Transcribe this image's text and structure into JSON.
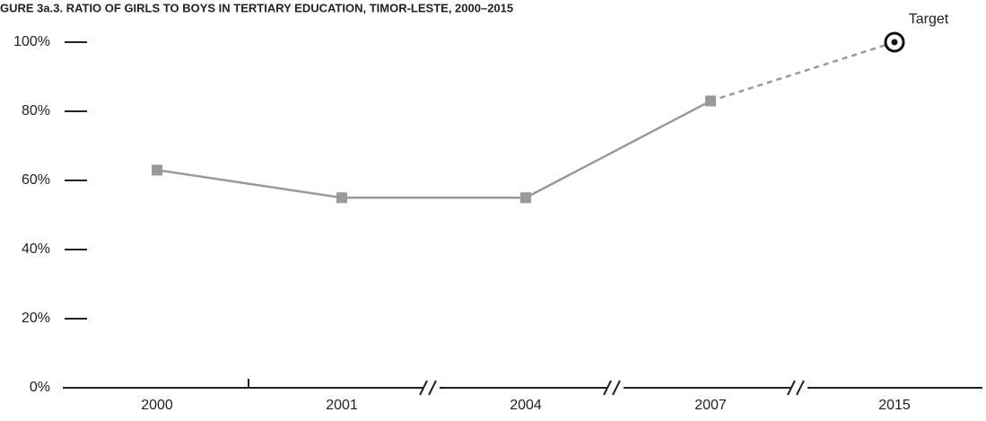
{
  "chart_data": {
    "type": "line",
    "title": "GURE 3a.3. RATIO OF GIRLS TO BOYS IN TERTIARY EDUCATION, TIMOR-LESTE, 2000–2015",
    "categories": [
      "2000",
      "2001",
      "2004",
      "2007",
      "2015"
    ],
    "values": [
      63,
      55,
      55,
      83,
      null
    ],
    "color": "#999999",
    "target": 100,
    "target_label": "Target",
    "target_color": "#111111",
    "ylim": [
      0,
      100
    ],
    "yticks": [
      {
        "value": 0,
        "label": "0%"
      },
      {
        "value": 20,
        "label": "20%"
      },
      {
        "value": 40,
        "label": "40%"
      },
      {
        "value": 60,
        "label": "60%"
      },
      {
        "value": 80,
        "label": "80%"
      },
      {
        "value": 100,
        "label": "100%"
      }
    ]
  }
}
